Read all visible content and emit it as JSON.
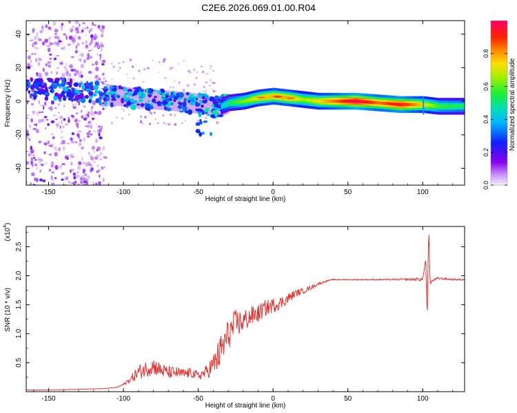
{
  "title": "C2E6.2026.069.01.00.R04",
  "chart_data": [
    {
      "type": "heatmap",
      "title": "C2E6.2026.069.01.00.R04",
      "xlabel": "Height of straight line (km)",
      "ylabel": "Frequency (Hz)",
      "xlim": [
        -165,
        128
      ],
      "ylim": [
        -50,
        48
      ],
      "xticks": [
        "-150",
        "-100",
        "-50",
        "0",
        "50",
        "100"
      ],
      "yticks": [
        "40",
        "20",
        "0",
        "-20",
        "-40"
      ],
      "colorbar": {
        "label": "Normalized spectral amplitude",
        "range": [
          0,
          1
        ],
        "ticks": [
          "0.0",
          "0.2",
          "0.4",
          "0.6",
          "0.8"
        ]
      },
      "ridge": {
        "x": [
          -160,
          -140,
          -125,
          -110,
          -95,
          -80,
          -65,
          -55,
          -45,
          -40,
          -35,
          -30,
          -20,
          -10,
          0,
          10,
          20,
          30,
          45,
          55,
          70,
          85,
          100,
          110,
          128
        ],
        "frequency": [
          8,
          7,
          6,
          4,
          2,
          1,
          0,
          -1,
          -2,
          -4,
          -3,
          -1,
          0,
          2,
          3,
          2,
          1,
          0,
          0,
          0,
          -1,
          -2,
          -2,
          -3,
          -3
        ],
        "amplitude": [
          0.3,
          0.33,
          0.35,
          0.38,
          0.4,
          0.42,
          0.4,
          0.42,
          0.4,
          0.45,
          0.4,
          0.5,
          0.6,
          0.7,
          0.75,
          0.75,
          0.62,
          0.7,
          0.85,
          0.95,
          0.8,
          0.9,
          0.7,
          0.55,
          0.5
        ]
      }
    },
    {
      "type": "line",
      "xlabel": "Height of straight line (km)",
      "ylabel": "SNR (10 * v/v)",
      "yscale_label": "(x10",
      "yscale_exp": "4",
      "xlim": [
        -165,
        128
      ],
      "ylim": [
        0,
        2.85
      ],
      "xticks": [
        "-150",
        "-100",
        "-50",
        "0",
        "50",
        "100"
      ],
      "yticks": [
        "0.5",
        "1.0",
        "1.5",
        "2.0",
        "2.5"
      ],
      "series": [
        {
          "name": "SNR",
          "color": "#e8312f",
          "x": [
            -165,
            -150,
            -130,
            -115,
            -105,
            -100,
            -95,
            -90,
            -85,
            -80,
            -75,
            -70,
            -65,
            -60,
            -55,
            -50,
            -45,
            -40,
            -35,
            -30,
            -25,
            -20,
            -15,
            -10,
            -5,
            0,
            5,
            10,
            15,
            20,
            25,
            30,
            35,
            40,
            45,
            50,
            60,
            70,
            80,
            90,
            95,
            100,
            102,
            103,
            104,
            105,
            106,
            110,
            120,
            128
          ],
          "y": [
            0.03,
            0.03,
            0.04,
            0.05,
            0.07,
            0.12,
            0.2,
            0.3,
            0.35,
            0.4,
            0.33,
            0.3,
            0.3,
            0.28,
            0.3,
            0.25,
            0.3,
            0.4,
            0.6,
            0.9,
            1.1,
            1.15,
            1.25,
            1.3,
            1.4,
            1.45,
            1.5,
            1.58,
            1.68,
            1.72,
            1.78,
            1.85,
            1.9,
            1.93,
            1.93,
            1.93,
            1.93,
            1.93,
            1.93,
            1.93,
            1.93,
            1.93,
            2.3,
            1.25,
            2.85,
            1.85,
            1.9,
            1.95,
            1.93,
            1.93
          ],
          "noise_amplitude": [
            0,
            0,
            0,
            0,
            0.01,
            0.03,
            0.12,
            0.25,
            0.28,
            0.3,
            0.25,
            0.22,
            0.2,
            0.18,
            0.17,
            0.15,
            0.22,
            0.4,
            0.6,
            0.55,
            0.5,
            0.4,
            0.35,
            0.3,
            0.28,
            0.25,
            0.22,
            0.18,
            0.12,
            0.1,
            0.08,
            0.05,
            0.03,
            0.02,
            0.02,
            0.02,
            0.02,
            0.02,
            0.03,
            0.04,
            0.06,
            0.06,
            0,
            0,
            0,
            0,
            0.05,
            0.04,
            0.03,
            0.03
          ]
        }
      ]
    }
  ]
}
